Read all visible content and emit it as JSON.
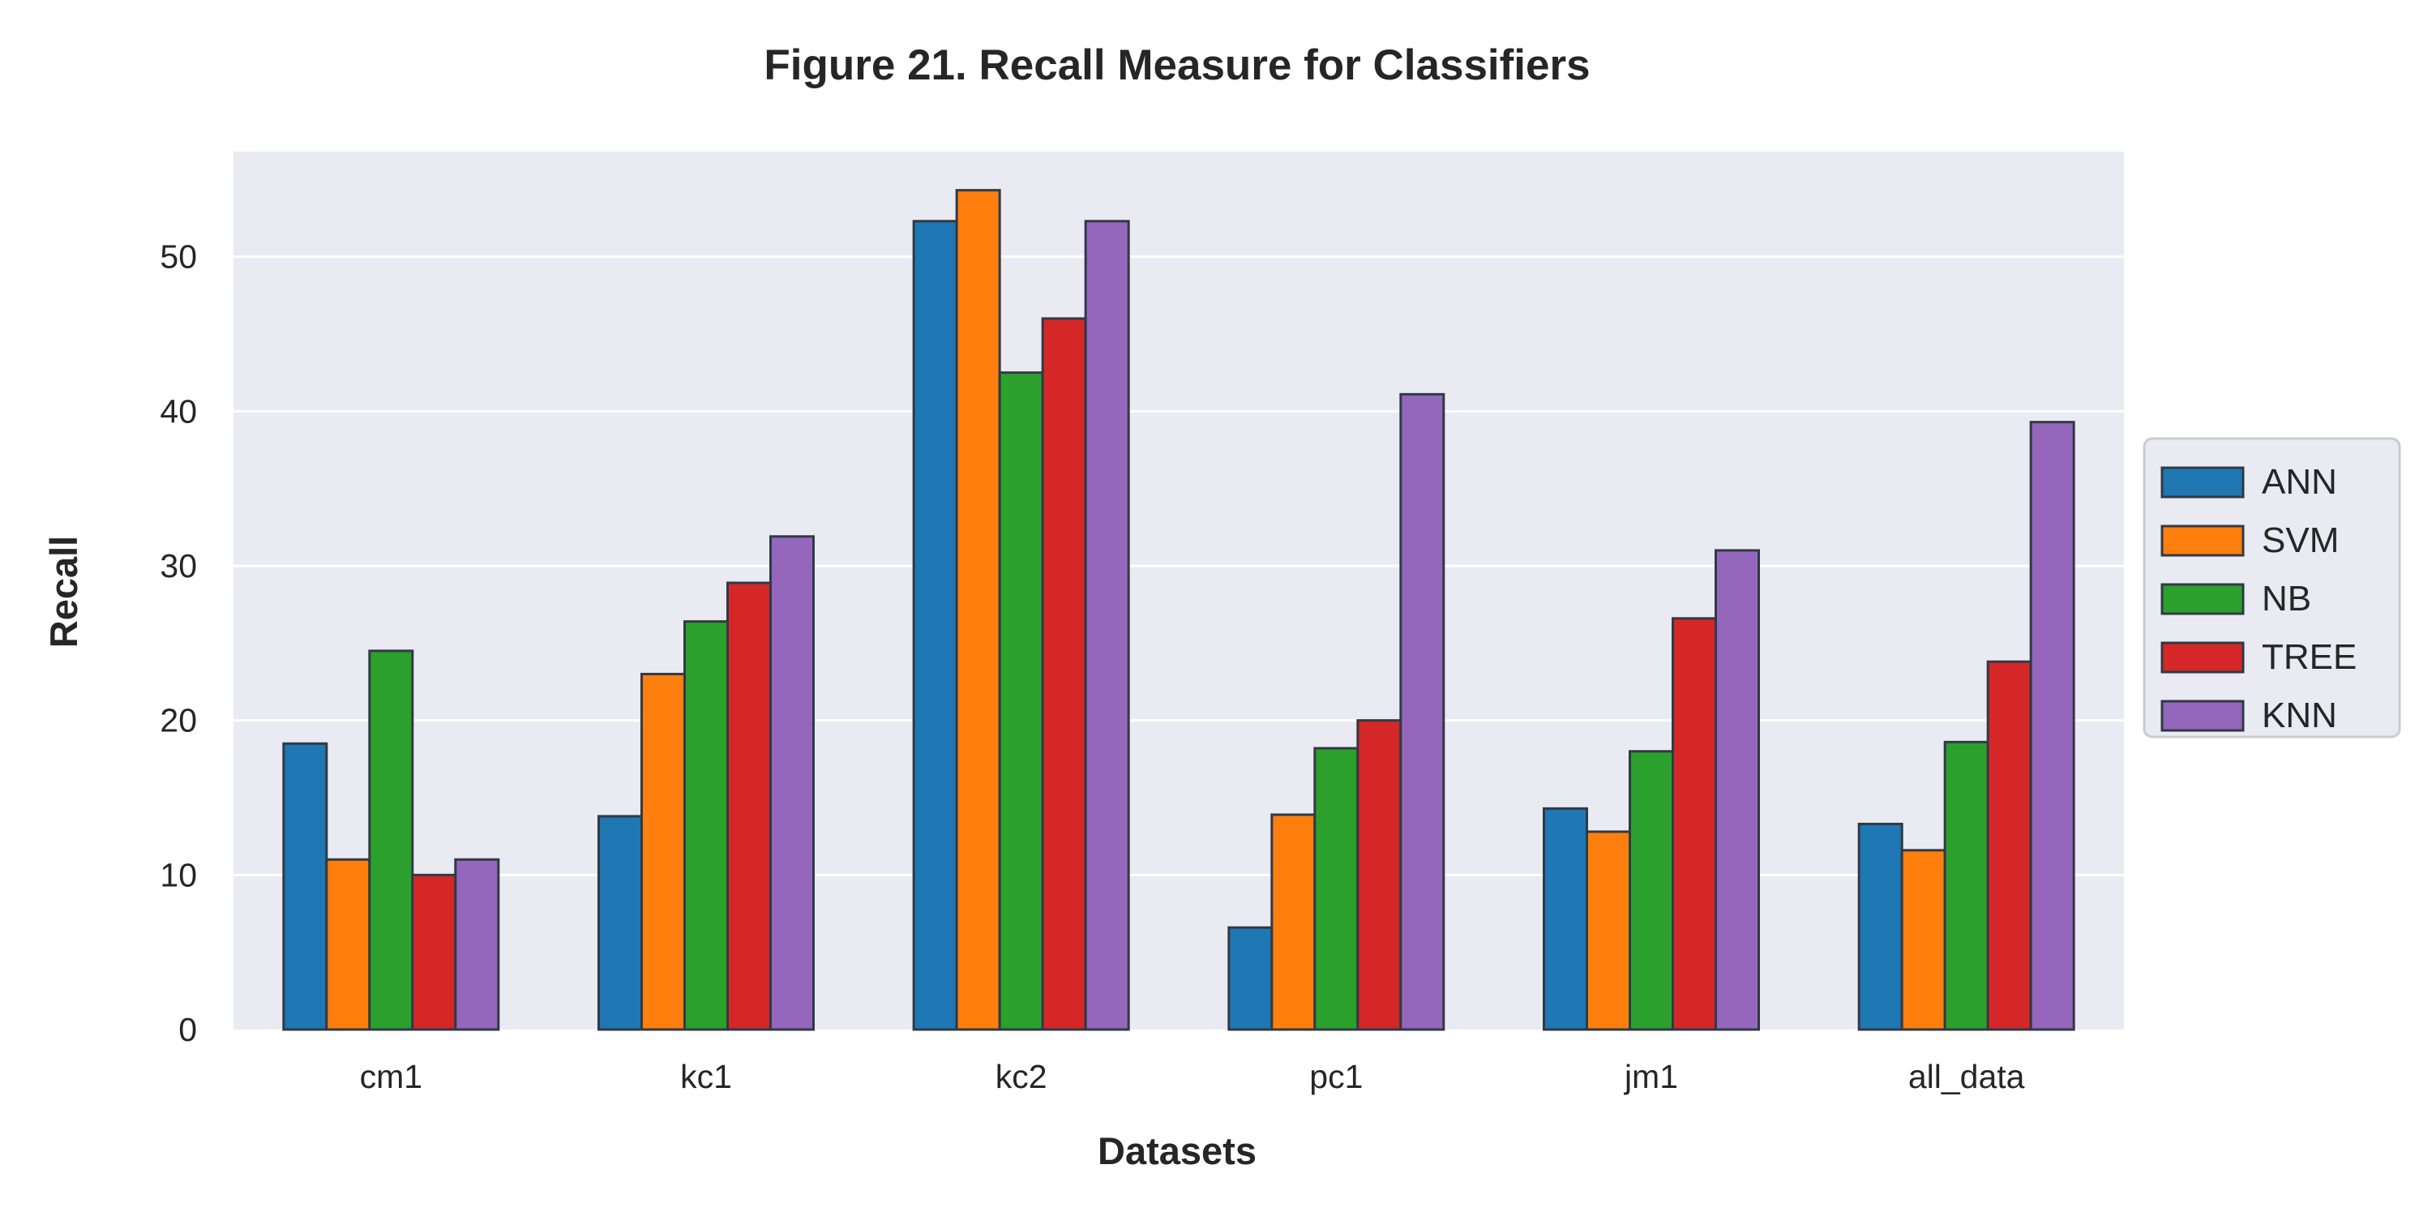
{
  "chart_data": {
    "type": "bar",
    "title": "Figure 21.  Recall Measure for Classifiers",
    "xlabel": "Datasets",
    "ylabel": "Recall",
    "categories": [
      "cm1",
      "kc1",
      "kc2",
      "pc1",
      "jm1",
      "all_data"
    ],
    "ylim": [
      0,
      56.8
    ],
    "yticks": [
      0,
      10,
      20,
      30,
      40,
      50
    ],
    "grid": true,
    "legend_position": "right, outside plot",
    "series": [
      {
        "name": "ANN",
        "color": "#1f77b4",
        "values": [
          18.5,
          13.8,
          52.3,
          6.6,
          14.3,
          13.3
        ]
      },
      {
        "name": "SVM",
        "color": "#ff7f0e",
        "values": [
          11.0,
          23.0,
          54.3,
          13.9,
          12.8,
          11.6
        ]
      },
      {
        "name": "NB",
        "color": "#2ca02c",
        "values": [
          24.5,
          26.4,
          42.5,
          18.2,
          18.0,
          18.6
        ]
      },
      {
        "name": "TREE",
        "color": "#d62728",
        "values": [
          10.0,
          28.9,
          46.0,
          20.0,
          26.6,
          23.8
        ]
      },
      {
        "name": "KNN",
        "color": "#9467bd",
        "values": [
          11.0,
          31.9,
          52.3,
          41.1,
          31.0,
          39.3
        ]
      }
    ]
  }
}
